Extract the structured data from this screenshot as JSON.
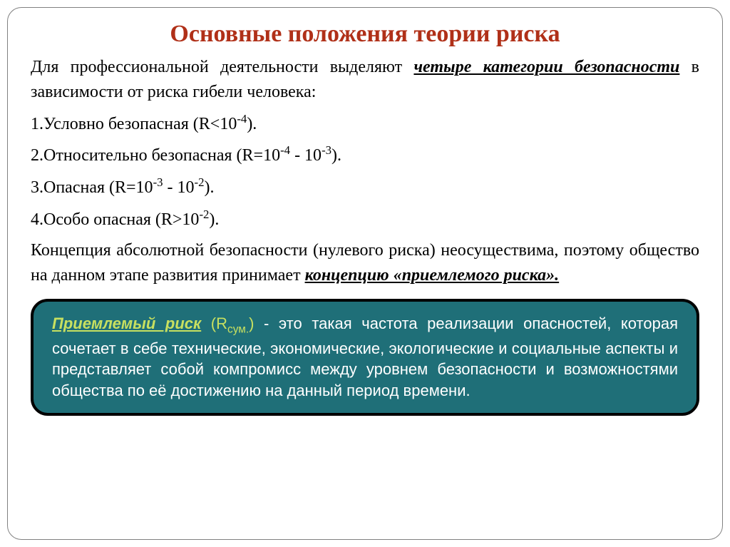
{
  "title": "Основные положения теории риска",
  "intro": {
    "before": "Для профессиональной деятельности выделяют ",
    "emph": "четыре категории безопасности",
    "after": " в зависимости от риска гибели человека:"
  },
  "categories": [
    {
      "num": "1.",
      "label": "Условно безопасная",
      "range_pre": "(R<10",
      "exp": "-4",
      "range_post": ")."
    },
    {
      "num": "2.",
      "label": "Относительно безопасная",
      "range_pre": "(R=10",
      "exp": "-4",
      "mid": " - 10",
      "exp2": "-3",
      "range_post": ")."
    },
    {
      "num": "3.",
      "label": "Опасная",
      "range_pre": "(R=10",
      "exp": "-3",
      "mid": " - 10",
      "exp2": "-2",
      "range_post": ")."
    },
    {
      "num": "4.",
      "label": "Особо опасная",
      "range_pre": "(R>10",
      "exp": "-2",
      "range_post": ")."
    }
  ],
  "concept": {
    "before": "Концепция абсолютной безопасности (нулевого риска) неосуществима, поэтому общество на данном этапе развития принимает ",
    "emph": "концепцию «приемлемого риска».",
    "after": ""
  },
  "callout": {
    "term": "Приемлемый риск",
    "symbol_pre": " (R",
    "symbol_sub": "сум.",
    "symbol_post": ")",
    "body": " - это такая частота реализации опасностей, которая сочетает в себе технические, экономические, экологические и социальные аспекты и представляет собой компромисс между уровнем безопасности и возможностями общества по её достижению на данный период времени."
  },
  "colors": {
    "title": "#b03018",
    "callout_bg": "#1f6f78",
    "callout_border": "#000000",
    "callout_term": "#c8e060",
    "text": "#000000",
    "callout_text": "#ffffff",
    "slide_border": "#808080"
  },
  "typography": {
    "title_fontsize": 34,
    "body_fontsize": 24,
    "callout_fontsize": 22,
    "body_font": "Times New Roman",
    "callout_font": "Arial"
  }
}
